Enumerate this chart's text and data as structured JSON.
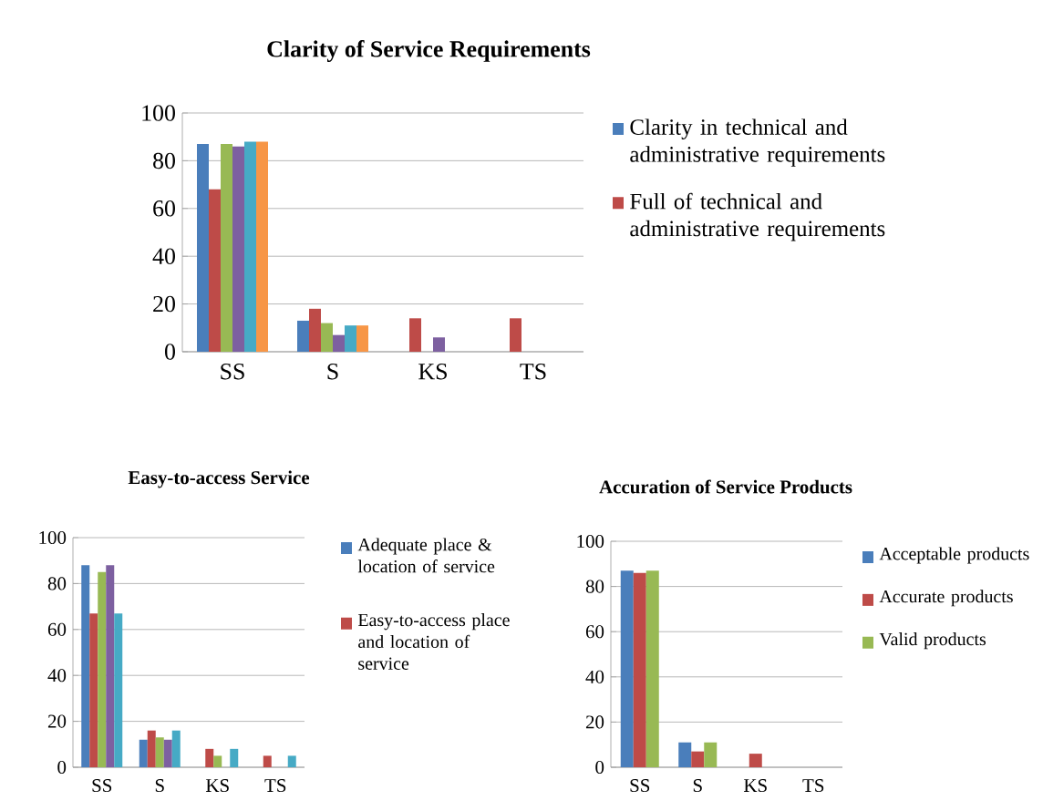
{
  "chart_data": [
    {
      "type": "bar",
      "title": "Clarity of Service Requirements",
      "categories": [
        "SS",
        "S",
        "KS",
        "TS"
      ],
      "ylim": [
        0,
        100
      ],
      "yticks": [
        0,
        20,
        40,
        60,
        80,
        100
      ],
      "grid": "y",
      "legend": "right",
      "series": [
        {
          "name": "Clarity in technical and administrative requirements",
          "color": "#4a7ebb",
          "values": [
            87,
            13,
            null,
            null
          ]
        },
        {
          "name": "Full of technical and administrative requirements",
          "color": "#be4b48",
          "values": [
            68,
            18,
            14,
            14
          ]
        },
        {
          "color": "#98b954",
          "values": [
            87,
            12,
            null,
            null
          ]
        },
        {
          "color": "#7d60a0",
          "values": [
            86,
            7,
            6,
            null
          ]
        },
        {
          "color": "#46aac5",
          "values": [
            88,
            11,
            null,
            null
          ]
        },
        {
          "color": "#f79646",
          "values": [
            88,
            11,
            null,
            null
          ]
        }
      ]
    },
    {
      "type": "bar",
      "title": "Easy-to-access Service",
      "categories": [
        "SS",
        "S",
        "KS",
        "TS"
      ],
      "ylim": [
        0,
        100
      ],
      "yticks": [
        0,
        20,
        40,
        60,
        80,
        100
      ],
      "grid": "y",
      "legend": "right",
      "series": [
        {
          "name": "Adequate place & location of service",
          "color": "#4a7ebb",
          "values": [
            88,
            12,
            null,
            null
          ]
        },
        {
          "name": "Easy-to-access place and location of service",
          "color": "#be4b48",
          "values": [
            67,
            16,
            8,
            5
          ]
        },
        {
          "color": "#98b954",
          "values": [
            85,
            13,
            5,
            null
          ]
        },
        {
          "color": "#7d60a0",
          "values": [
            88,
            12,
            null,
            null
          ]
        },
        {
          "color": "#46aac5",
          "values": [
            67,
            16,
            8,
            5
          ]
        }
      ]
    },
    {
      "type": "bar",
      "title": "Accuration of Service Products",
      "categories": [
        "SS",
        "S",
        "KS",
        "TS"
      ],
      "ylim": [
        0,
        100
      ],
      "yticks": [
        0,
        20,
        40,
        60,
        80,
        100
      ],
      "grid": "y",
      "legend": "right",
      "series": [
        {
          "name": "Acceptable products",
          "color": "#4a7ebb",
          "values": [
            87,
            11,
            null,
            null
          ]
        },
        {
          "name": "Accurate products",
          "color": "#be4b48",
          "values": [
            86,
            7,
            6,
            null
          ]
        },
        {
          "name": "Valid products",
          "color": "#98b954",
          "values": [
            87,
            11,
            null,
            null
          ]
        }
      ]
    }
  ]
}
